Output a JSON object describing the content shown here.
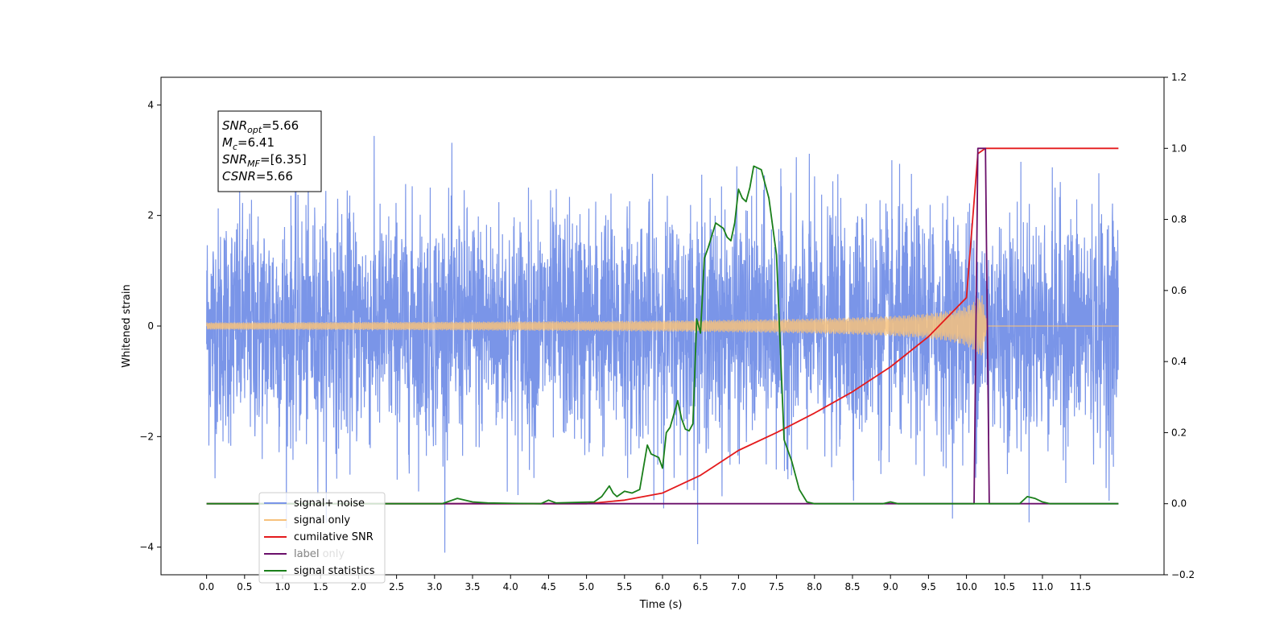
{
  "chart_data": {
    "type": "line",
    "xlabel": "Time (s)",
    "ylabel_left": "Whitened strain",
    "xlim": [
      -0.6,
      12.6
    ],
    "ylim_left": [
      -4.5,
      4.5
    ],
    "ylim_right": [
      -0.2,
      1.2
    ],
    "x_ticks": [
      "0.0",
      "0.5",
      "1.0",
      "1.5",
      "2.0",
      "2.5",
      "3.0",
      "3.5",
      "4.0",
      "4.5",
      "5.0",
      "5.5",
      "6.0",
      "6.5",
      "7.0",
      "7.5",
      "8.0",
      "8.5",
      "9.0",
      "9.5",
      "10.0",
      "10.5",
      "11.0",
      "11.5"
    ],
    "y_ticks_left": [
      "−4",
      "−2",
      "0",
      "2",
      "4"
    ],
    "y_ticks_right": [
      "−0.2",
      "0.0",
      "0.2",
      "0.4",
      "0.6",
      "0.8",
      "1.0",
      "1.2"
    ],
    "grid": false,
    "legend_position": "lower-left",
    "annotation": {
      "lines": [
        {
          "sym": "SNR",
          "sub": "opt",
          "val": "=5.66"
        },
        {
          "sym": "M",
          "sub": "c",
          "val": "=6.41"
        },
        {
          "sym": "SNR",
          "sub": "MF",
          "val": "=[6.35]"
        },
        {
          "sym": "CSNR",
          "sub": "",
          "val": "=5.66"
        }
      ]
    },
    "series": [
      {
        "name": "signal+ noise",
        "color": "#7a95e8",
        "axis": "left",
        "kind": "noise",
        "x_range": [
          0.0,
          12.0
        ],
        "std": 1.05
      },
      {
        "name": "signal only",
        "color": "#f7c27d",
        "axis": "left",
        "kind": "chirp",
        "x_range": [
          0.0,
          12.0
        ],
        "coalescence_time": 10.2,
        "peak_amplitude": 0.6
      },
      {
        "name": "cumilative SNR",
        "color": "#e41a1c",
        "axis": "right",
        "x": [
          0.0,
          5.0,
          5.5,
          6.0,
          6.5,
          7.0,
          7.5,
          8.0,
          8.5,
          9.0,
          9.5,
          10.0,
          10.15,
          10.25,
          12.0
        ],
        "y": [
          0.0,
          0.0,
          0.01,
          0.03,
          0.08,
          0.15,
          0.2,
          0.255,
          0.315,
          0.385,
          0.47,
          0.58,
          0.985,
          1.0,
          1.0
        ]
      },
      {
        "name": "label",
        "color": "#6a0f6a",
        "axis": "right",
        "x": [
          0.0,
          10.1,
          10.15,
          10.25,
          10.3,
          12.0
        ],
        "y": [
          0.0,
          0.0,
          1.0,
          1.0,
          0.0,
          0.0
        ]
      },
      {
        "name": "label only",
        "color": "#cccccc",
        "axis": "right",
        "x": [],
        "y": []
      },
      {
        "name": "signal statistics",
        "color": "#1a7f1a",
        "axis": "right",
        "x": [
          0.0,
          3.1,
          3.3,
          3.5,
          3.7,
          4.4,
          4.5,
          4.6,
          5.1,
          5.2,
          5.3,
          5.35,
          5.4,
          5.5,
          5.6,
          5.7,
          5.8,
          5.85,
          5.95,
          6.0,
          6.05,
          6.1,
          6.2,
          6.25,
          6.3,
          6.35,
          6.4,
          6.45,
          6.5,
          6.55,
          6.6,
          6.7,
          6.8,
          6.85,
          6.9,
          6.95,
          7.0,
          7.05,
          7.1,
          7.15,
          7.2,
          7.3,
          7.4,
          7.5,
          7.6,
          7.7,
          7.8,
          7.9,
          8.0,
          8.2,
          8.9,
          9.0,
          9.1,
          10.7,
          10.8,
          10.9,
          11.0,
          11.1,
          11.5,
          12.0
        ],
        "y": [
          0.0,
          0.0,
          0.015,
          0.005,
          0.002,
          0.0,
          0.01,
          0.002,
          0.005,
          0.02,
          0.05,
          0.03,
          0.02,
          0.035,
          0.03,
          0.04,
          0.165,
          0.14,
          0.13,
          0.1,
          0.2,
          0.215,
          0.29,
          0.24,
          0.21,
          0.205,
          0.225,
          0.52,
          0.48,
          0.69,
          0.72,
          0.79,
          0.775,
          0.75,
          0.74,
          0.79,
          0.885,
          0.86,
          0.85,
          0.89,
          0.95,
          0.94,
          0.86,
          0.7,
          0.18,
          0.12,
          0.04,
          0.005,
          0.0,
          0.0,
          0.0,
          0.005,
          0.0,
          0.0,
          0.02,
          0.015,
          0.005,
          0.0,
          0.0,
          0.0
        ]
      }
    ]
  }
}
